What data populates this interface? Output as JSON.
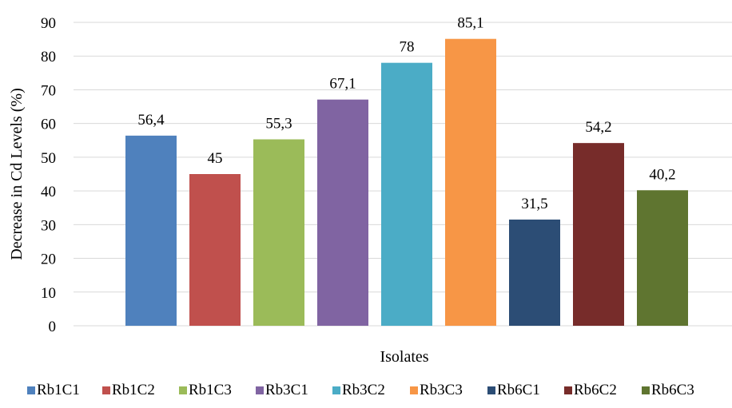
{
  "chart_data": {
    "type": "bar",
    "title": "",
    "xlabel": "Isolates",
    "ylabel": "Decrease in Cd Levels (%)",
    "ylim": [
      0,
      90
    ],
    "yticks": [
      "0",
      "10",
      "20",
      "30",
      "40",
      "50",
      "60",
      "70",
      "80",
      "90"
    ],
    "grid": true,
    "legend_position": "bottom",
    "series": [
      {
        "name": "Rb1C1",
        "value": 56.4,
        "label": "56,4",
        "color": "#4f81bd"
      },
      {
        "name": "Rb1C2",
        "value": 45,
        "label": "45",
        "color": "#c0504d"
      },
      {
        "name": "Rb1C3",
        "value": 55.3,
        "label": "55,3",
        "color": "#9bbb59"
      },
      {
        "name": "Rb3C1",
        "value": 67.1,
        "label": "67,1",
        "color": "#8064a2"
      },
      {
        "name": "Rb3C2",
        "value": 78,
        "label": "78",
        "color": "#4bacc6"
      },
      {
        "name": "Rb3C3",
        "value": 85.1,
        "label": "85,1",
        "color": "#f79646"
      },
      {
        "name": "Rb6C1",
        "value": 31.5,
        "label": "31,5",
        "color": "#2c4d75"
      },
      {
        "name": "Rb6C2",
        "value": 54.2,
        "label": "54,2",
        "color": "#772c2a"
      },
      {
        "name": "Rb6C3",
        "value": 40.2,
        "label": "40,2",
        "color": "#5f7530"
      }
    ]
  }
}
